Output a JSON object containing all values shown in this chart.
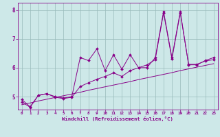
{
  "xlabel": "Windchill (Refroidissement éolien,°C)",
  "bg_color": "#cde8e8",
  "line_color": "#880088",
  "grid_color": "#99bbbb",
  "xlim": [
    -0.5,
    23.5
  ],
  "ylim": [
    4.55,
    8.25
  ],
  "xticks": [
    0,
    1,
    2,
    3,
    4,
    5,
    6,
    7,
    8,
    9,
    10,
    11,
    12,
    13,
    14,
    15,
    16,
    17,
    18,
    19,
    20,
    21,
    22,
    23
  ],
  "yticks": [
    5,
    6,
    7,
    8
  ],
  "s1x": [
    0,
    1,
    2,
    3,
    4,
    5,
    6,
    7,
    8,
    9,
    10,
    11,
    12,
    13,
    14,
    15,
    16,
    17,
    18,
    19,
    20,
    21,
    22,
    23
  ],
  "s1y": [
    4.9,
    4.65,
    5.05,
    5.1,
    5.0,
    4.95,
    5.0,
    6.35,
    6.25,
    6.65,
    5.9,
    6.45,
    5.95,
    6.45,
    6.0,
    6.0,
    6.35,
    7.95,
    6.35,
    7.95,
    6.1,
    6.1,
    6.25,
    6.35
  ],
  "s2x": [
    0,
    1,
    2,
    3,
    4,
    5,
    6,
    7,
    8,
    9,
    10,
    11,
    12,
    13,
    14,
    15,
    16,
    17,
    18,
    19,
    20,
    21,
    22,
    23
  ],
  "s2y": [
    4.72,
    4.78,
    4.85,
    4.91,
    4.97,
    5.03,
    5.09,
    5.15,
    5.22,
    5.28,
    5.34,
    5.4,
    5.46,
    5.52,
    5.59,
    5.65,
    5.71,
    5.77,
    5.83,
    5.9,
    5.96,
    6.02,
    6.08,
    6.14
  ],
  "s3x": [
    0,
    1,
    2,
    3,
    4,
    5,
    6,
    7,
    8,
    9,
    10,
    11,
    12,
    13,
    14,
    15,
    16,
    17,
    18,
    19,
    20,
    21,
    22,
    23
  ],
  "s3y": [
    4.82,
    4.63,
    5.05,
    5.1,
    4.98,
    4.93,
    4.98,
    5.35,
    5.48,
    5.6,
    5.7,
    5.82,
    5.7,
    5.9,
    6.0,
    6.1,
    6.28,
    7.9,
    6.3,
    7.9,
    6.12,
    6.12,
    6.23,
    6.28
  ]
}
